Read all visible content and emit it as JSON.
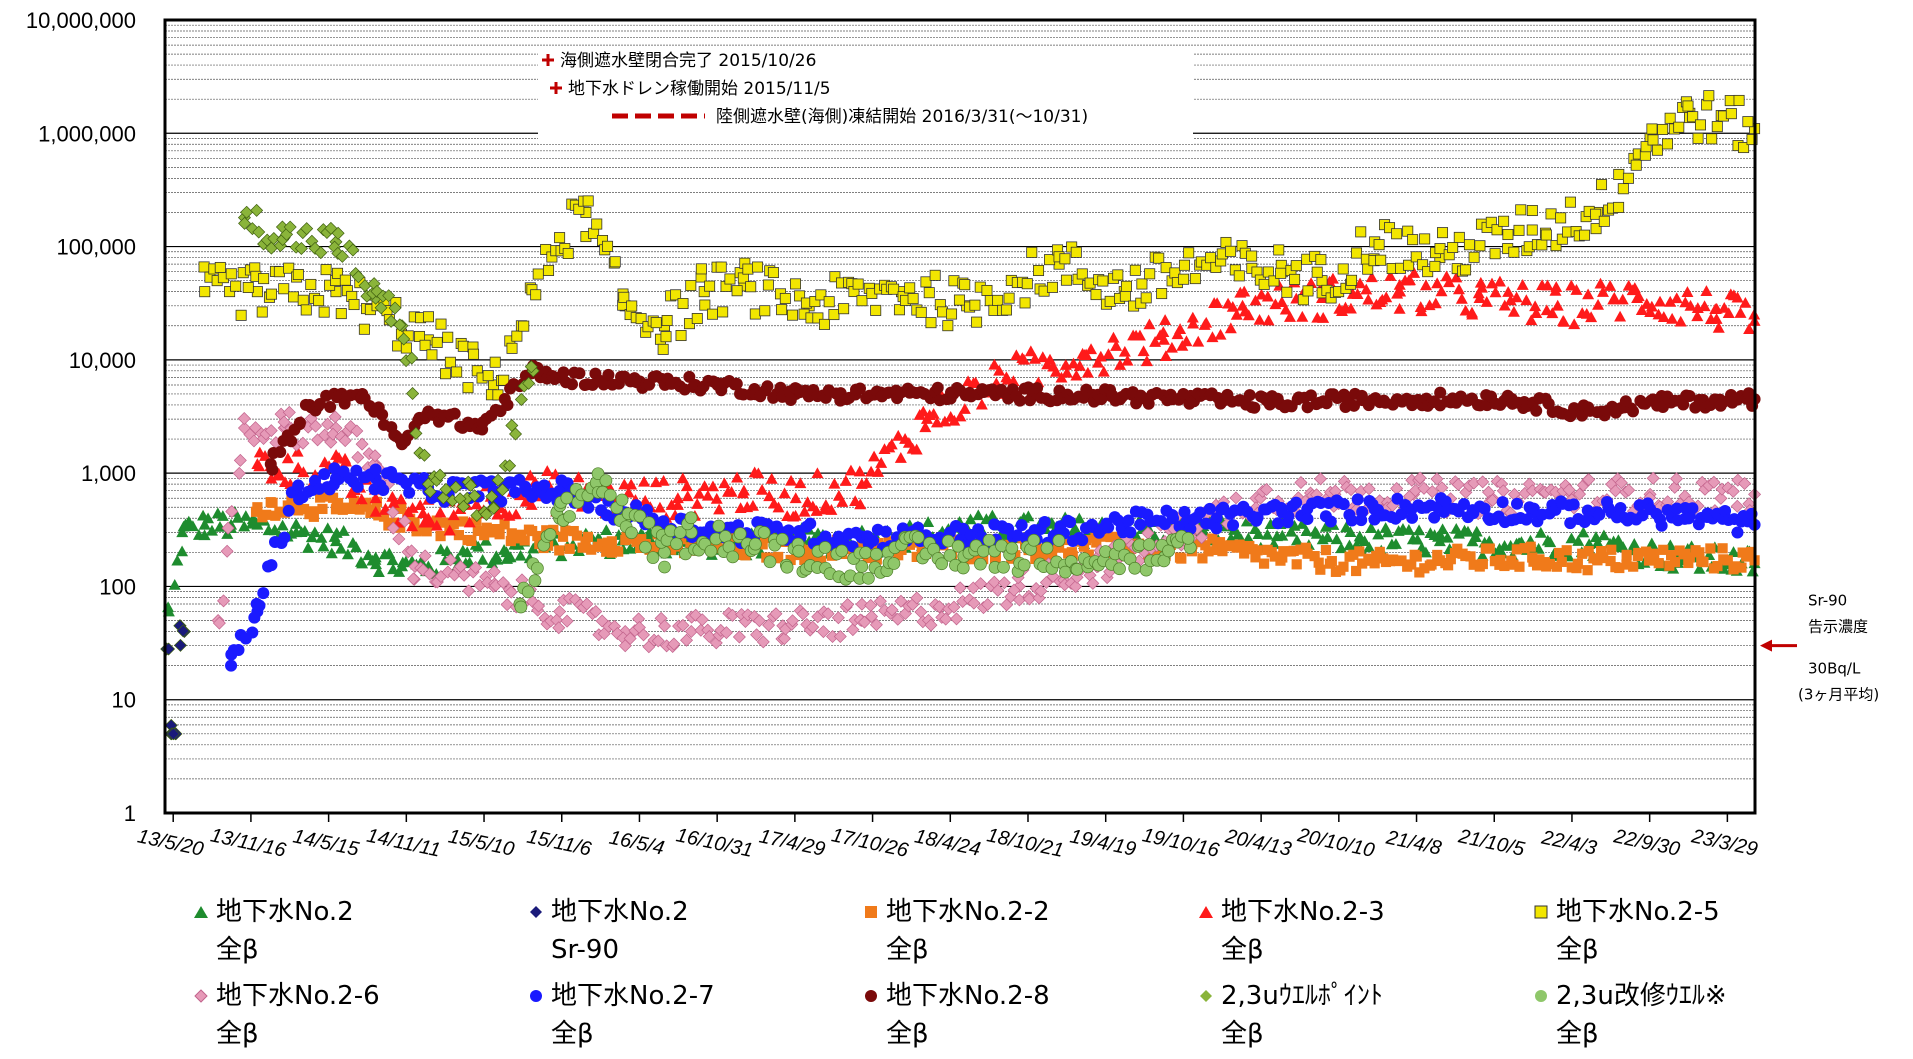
{
  "chart_data": {
    "type": "scatter",
    "y_scale": "log",
    "ylim": [
      1,
      10000000
    ],
    "y_ticks": [
      "1",
      "10",
      "100",
      "1,000",
      "10,000",
      "100,000",
      "1,000,000",
      "10,000,000"
    ],
    "x_range": [
      "2013-05-01",
      "2023-06-01"
    ],
    "x_ticks": [
      {
        "label": "13/5/20",
        "date": "2013-05-20"
      },
      {
        "label": "13/11/16",
        "date": "2013-11-16"
      },
      {
        "label": "14/5/15",
        "date": "2014-05-15"
      },
      {
        "label": "14/11/11",
        "date": "2014-11-11"
      },
      {
        "label": "15/5/10",
        "date": "2015-05-10"
      },
      {
        "label": "15/11/6",
        "date": "2015-11-06"
      },
      {
        "label": "16/5/4",
        "date": "2016-05-04"
      },
      {
        "label": "16/10/31",
        "date": "2016-10-31"
      },
      {
        "label": "17/4/29",
        "date": "2017-04-29"
      },
      {
        "label": "17/10/26",
        "date": "2017-10-26"
      },
      {
        "label": "18/4/24",
        "date": "2018-04-24"
      },
      {
        "label": "18/10/21",
        "date": "2018-10-21"
      },
      {
        "label": "19/4/19",
        "date": "2019-04-19"
      },
      {
        "label": "19/10/16",
        "date": "2019-10-16"
      },
      {
        "label": "20/4/13",
        "date": "2020-04-13"
      },
      {
        "label": "20/10/10",
        "date": "2020-10-10"
      },
      {
        "label": "21/4/8",
        "date": "2021-04-08"
      },
      {
        "label": "21/10/5",
        "date": "2021-10-05"
      },
      {
        "label": "22/4/3",
        "date": "2022-04-03"
      },
      {
        "label": "22/9/30",
        "date": "2022-09-30"
      },
      {
        "label": "23/3/29",
        "date": "2023-03-29"
      }
    ],
    "grid": "horizontal major and minor",
    "legend_position": "bottom",
    "annotations": [
      {
        "text": "海側遮水壁閉合完了 2015/10/26",
        "marker": "plus",
        "color": "#c00000"
      },
      {
        "text": "地下水ドレン稼働開始 2015/11/5",
        "marker": "plus",
        "color": "#c00000"
      },
      {
        "text": "陸側遮水壁(海側)凍結開始 2016/3/31(～10/31)",
        "marker": "dashed-line",
        "color": "#c00000"
      }
    ],
    "reference": {
      "lines": [
        "Sr-90",
        "告示濃度",
        "30Bq/L",
        "(3ヶ月平均)"
      ],
      "value": 30,
      "color": "#c00000"
    },
    "series": [
      {
        "name": "地下水No.2 全β",
        "legend_lines": [
          "地下水No.2",
          "全β"
        ],
        "marker": "triangle",
        "color": "#1e8c2e",
        "spread": 0.12,
        "x": [
          "2013-05-10",
          "2013-06-10",
          "2013-08-01",
          "2013-10-01",
          "2013-12-01",
          "2014-03-01",
          "2014-06-01",
          "2014-09-01",
          "2014-11-01",
          "2015-01-01",
          "2015-04-01",
          "2015-07-01",
          "2015-10-01",
          "2016-01-01",
          "2016-06-01",
          "2017-01-01",
          "2017-06-01",
          "2017-12-01",
          "2018-06-01",
          "2018-12-01",
          "2019-06-01",
          "2019-12-01",
          "2020-06-01",
          "2020-12-01",
          "2021-06-01",
          "2021-12-01",
          "2022-06-01",
          "2022-12-01",
          "2023-05-31"
        ],
        "y": [
          60,
          300,
          350,
          350,
          350,
          300,
          250,
          180,
          150,
          150,
          200,
          200,
          230,
          250,
          250,
          240,
          250,
          260,
          330,
          320,
          300,
          310,
          280,
          260,
          250,
          240,
          240,
          180,
          160
        ]
      },
      {
        "name": "地下水No.2 Sr-90",
        "legend_lines": [
          "地下水No.2",
          "Sr-90"
        ],
        "marker": "diamond",
        "color": "#1a1a7a",
        "spread": 0,
        "x": [
          "2013-05-05",
          "2013-05-15",
          "2013-05-25",
          "2013-06-05",
          "2013-06-15"
        ],
        "y": [
          28,
          5,
          5,
          45,
          40
        ]
      },
      {
        "name": "地下水No.2-2 全β",
        "legend_lines": [
          "地下水No.2-2",
          "全β"
        ],
        "marker": "square",
        "color": "#f07a1a",
        "spread": 0.1,
        "x": [
          "2013-12-01",
          "2014-03-01",
          "2014-06-01",
          "2014-09-01",
          "2015-01-01",
          "2015-06-01",
          "2015-10-01",
          "2016-03-01",
          "2016-08-01",
          "2017-01-01",
          "2017-06-01",
          "2018-01-01",
          "2018-06-01",
          "2019-01-01",
          "2019-06-01",
          "2020-01-01",
          "2020-06-01",
          "2021-01-01",
          "2021-06-01",
          "2022-01-01",
          "2022-06-01",
          "2023-01-01",
          "2023-05-31"
        ],
        "y": [
          500,
          550,
          480,
          450,
          350,
          300,
          260,
          250,
          230,
          220,
          210,
          210,
          215,
          220,
          220,
          210,
          180,
          160,
          170,
          180,
          170,
          180,
          170
        ]
      },
      {
        "name": "地下水No.2-3 全β",
        "legend_lines": [
          "地下水No.2-3",
          "全β"
        ],
        "marker": "triangle",
        "color": "#ff1a1a",
        "spread": 0.18,
        "x": [
          "2013-12-01",
          "2014-06-01",
          "2014-09-01",
          "2015-01-01",
          "2015-06-01",
          "2015-10-01",
          "2016-03-01",
          "2016-08-01",
          "2017-01-01",
          "2017-05-01",
          "2017-10-01",
          "2018-03-01",
          "2018-09-01",
          "2019-03-01",
          "2019-09-01",
          "2020-03-01",
          "2020-09-01",
          "2021-03-01",
          "2021-09-01",
          "2022-03-01",
          "2022-09-01",
          "2023-03-01",
          "2023-05-31"
        ],
        "y": [
          1200,
          1000,
          600,
          400,
          600,
          700,
          600,
          600,
          700,
          600,
          800,
          3000,
          7000,
          11000,
          15000,
          30000,
          35000,
          40000,
          35000,
          30000,
          35000,
          28000,
          22000
        ]
      },
      {
        "name": "地下水No.2-5 全β",
        "legend_lines": [
          "地下水No.2-5",
          "全β"
        ],
        "marker": "square-open",
        "color": "#f2e600",
        "spread": 0.22,
        "x": [
          "2013-08-01",
          "2013-12-01",
          "2014-06-01",
          "2015-01-01",
          "2015-06-01",
          "2015-11-01",
          "2016-01-01",
          "2016-04-01",
          "2016-07-01",
          "2016-10-01",
          "2017-01-01",
          "2017-06-01",
          "2018-01-01",
          "2018-06-01",
          "2019-01-01",
          "2019-06-01",
          "2019-12-01",
          "2020-06-01",
          "2020-09-01",
          "2021-01-01",
          "2021-06-01",
          "2022-01-01",
          "2022-06-01",
          "2022-10-01",
          "2023-01-01",
          "2023-05-31"
        ],
        "y": [
          40000,
          40000,
          40000,
          15000,
          6000,
          120000,
          200000,
          30000,
          20000,
          40000,
          45000,
          30000,
          40000,
          30000,
          70000,
          40000,
          70000,
          60000,
          50000,
          110000,
          80000,
          140000,
          200000,
          900000,
          1500000,
          1100000
        ]
      },
      {
        "name": "地下水No.2-6 全β",
        "legend_lines": [
          "地下水No.2-6",
          "全β"
        ],
        "marker": "diamond-open",
        "color": "#e69ab8",
        "spread": 0.15,
        "x": [
          "2013-09-01",
          "2013-11-01",
          "2014-02-01",
          "2014-06-01",
          "2014-09-01",
          "2014-12-01",
          "2015-06-01",
          "2015-11-01",
          "2016-04-01",
          "2016-09-01",
          "2017-04-01",
          "2017-10-01",
          "2018-04-01",
          "2018-10-01",
          "2019-04-01",
          "2019-10-01",
          "2020-04-01",
          "2020-10-01",
          "2021-04-01",
          "2021-10-01",
          "2022-04-01",
          "2022-10-01",
          "2023-05-31"
        ],
        "y": [
          50,
          2500,
          2500,
          2500,
          1200,
          150,
          100,
          60,
          40,
          40,
          45,
          50,
          65,
          100,
          150,
          300,
          600,
          650,
          650,
          600,
          650,
          650,
          650
        ]
      },
      {
        "name": "地下水No.2-7 全β",
        "legend_lines": [
          "地下水No.2-7",
          "全β"
        ],
        "marker": "circle",
        "color": "#1a1aff",
        "spread": 0.1,
        "x": [
          "2013-10-01",
          "2013-12-01",
          "2014-03-01",
          "2014-06-01",
          "2014-09-01",
          "2015-01-01",
          "2015-06-01",
          "2015-11-01",
          "2016-04-01",
          "2016-10-01",
          "2017-04-01",
          "2017-10-01",
          "2018-06-01",
          "2019-01-01",
          "2019-06-01",
          "2020-01-01",
          "2020-06-01",
          "2021-01-01",
          "2021-06-01",
          "2022-01-01",
          "2022-06-01",
          "2023-01-01",
          "2023-05-31"
        ],
        "y": [
          20,
          60,
          700,
          900,
          900,
          700,
          700,
          700,
          450,
          300,
          300,
          270,
          280,
          300,
          360,
          400,
          450,
          480,
          500,
          450,
          450,
          420,
          350
        ]
      },
      {
        "name": "地下水No.2-8 全β",
        "legend_lines": [
          "地下水No.2-8",
          "全β"
        ],
        "marker": "circle",
        "color": "#7a0a0a",
        "spread": 0.06,
        "x": [
          "2014-01-01",
          "2014-04-01",
          "2014-08-01",
          "2014-11-01",
          "2015-01-01",
          "2015-05-01",
          "2015-09-01",
          "2015-11-01",
          "2016-05-01",
          "2016-11-01",
          "2017-05-01",
          "2017-11-01",
          "2018-05-01",
          "2018-11-01",
          "2019-05-01",
          "2019-11-01",
          "2020-05-01",
          "2020-11-01",
          "2021-05-01",
          "2021-11-01",
          "2022-05-01",
          "2022-11-01",
          "2023-05-31"
        ],
        "y": [
          1200,
          4000,
          5000,
          1800,
          3500,
          2500,
          8000,
          7000,
          6500,
          6000,
          5000,
          5000,
          5000,
          5000,
          4800,
          4500,
          4200,
          4400,
          4500,
          4500,
          3500,
          4200,
          4500
        ]
      },
      {
        "name": "2,3uｳｴﾙﾎﾟｲﾝﾄ 全β",
        "legend_lines": [
          "2,3uｳｴﾙﾎﾟｲﾝﾄ",
          "全β"
        ],
        "marker": "diamond",
        "color": "#8ab43a",
        "spread": 0.15,
        "x": [
          "2013-11-01",
          "2014-02-01",
          "2014-06-01",
          "2014-09-01",
          "2014-11-01",
          "2015-01-01",
          "2015-04-01",
          "2015-06-01",
          "2015-09-01"
        ],
        "y": [
          180000,
          120000,
          110000,
          35000,
          20000,
          800,
          600,
          500,
          8000
        ]
      },
      {
        "name": "2,3u改修ｳｴﾙ※ 全β",
        "legend_lines": [
          "2,3u改修ｳｴﾙ※",
          "全β"
        ],
        "marker": "circle",
        "color": "#8fc76a",
        "spread": 0.15,
        "x": [
          "2015-08-01",
          "2015-11-01",
          "2016-02-01",
          "2016-04-01",
          "2016-07-01",
          "2016-09-01",
          "2017-10-01",
          "2017-12-01",
          "2019-09-01",
          "2019-11-01"
        ],
        "y": [
          70,
          400,
          900,
          400,
          200,
          300,
          150,
          200,
          180,
          220
        ]
      }
    ]
  }
}
